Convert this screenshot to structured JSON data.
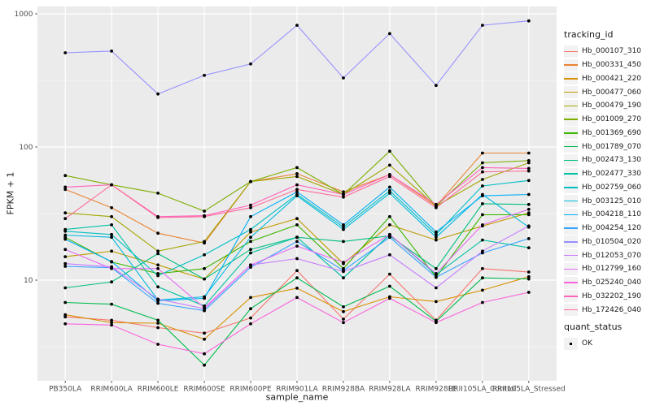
{
  "axes": {
    "x_title": "sample_name",
    "y_title": "FPKM + 1"
  },
  "legend": {
    "title": "tracking_id"
  },
  "legend_quant": {
    "title": "quant_status",
    "items": [
      {
        "label": "OK"
      }
    ]
  },
  "colors": {
    "panel_bg": "#EBEBEB",
    "grid": "#FFFFFF",
    "axis_text": "#4D4D4D",
    "tick_mark": "#333333",
    "legend_key_bg": "#F2F2F2",
    "point": "#000000"
  },
  "chart_data": {
    "type": "line",
    "xlabel": "sample_name",
    "ylabel": "FPKM + 1",
    "y_scale": "log10",
    "y_ticks": [
      1000,
      100,
      10
    ],
    "y_minor_ticks": [
      316.23,
      31.62,
      3.162
    ],
    "ylim": [
      1.75,
      1135
    ],
    "grid": true,
    "legend_position": "right",
    "point_marker": {
      "shape": "dot",
      "color": "#000000",
      "size": 2,
      "meaning": "quant_status OK"
    },
    "x_categories": [
      "PB350LA",
      "RRIM600LA",
      "RRIM600LE",
      "RRIM600SE",
      "RRIM600PE",
      "RRIM901LA",
      "RRIM928BA",
      "RRIM928LA",
      "RRIM928LE",
      "RRII105LA_Control",
      "RRII105LA_Stressed"
    ],
    "series": [
      {
        "name": "Hb_000107_310",
        "color": "#F8766D",
        "values": [
          5.3,
          5.0,
          4.4,
          4.0,
          5.2,
          11.8,
          5.1,
          11.1,
          5.0,
          12.2,
          11.5
        ]
      },
      {
        "name": "Hb_000331_450",
        "color": "#EA8331",
        "values": [
          48,
          35,
          22.5,
          19,
          55,
          63,
          46,
          62,
          36,
          90,
          90
        ]
      },
      {
        "name": "Hb_000421_220",
        "color": "#D89000",
        "values": [
          5.5,
          4.8,
          4.75,
          3.6,
          7.4,
          8.7,
          5.8,
          7.5,
          6.9,
          8.4,
          10.6
        ]
      },
      {
        "name": "Hb_000477_060",
        "color": "#C09B00",
        "values": [
          15,
          16.5,
          13,
          10.2,
          23,
          29,
          13.3,
          26,
          20,
          25.5,
          32
        ]
      },
      {
        "name": "Hb_000479_190",
        "color": "#A3A500",
        "values": [
          32,
          30,
          16.5,
          19.5,
          55,
          60,
          44,
          73,
          36,
          57,
          76
        ]
      },
      {
        "name": "Hb_001009_270",
        "color": "#7CAE00",
        "values": [
          61,
          52,
          45,
          33,
          55,
          70,
          44,
          93,
          36,
          76,
          79
        ]
      },
      {
        "name": "Hb_001369_690",
        "color": "#39B600",
        "values": [
          21,
          13.7,
          11.2,
          12.2,
          19.5,
          26,
          12.2,
          30,
          10.5,
          31,
          31
        ]
      },
      {
        "name": "Hb_001789_070",
        "color": "#00BB4E",
        "values": [
          6.8,
          6.6,
          5.0,
          2.3,
          6.1,
          10.4,
          6.3,
          9.0,
          4.9,
          10.4,
          10.2
        ]
      },
      {
        "name": "Hb_002473_130",
        "color": "#00BF7D",
        "values": [
          8.75,
          9.7,
          15.8,
          10.2,
          17,
          21,
          19.5,
          21.5,
          12.2,
          37.5,
          37
        ]
      },
      {
        "name": "Hb_002477_330",
        "color": "#00C1A3",
        "values": [
          24,
          26,
          8.9,
          6.4,
          16,
          21,
          10.4,
          22,
          11,
          20,
          17.5
        ]
      },
      {
        "name": "Hb_002759_060",
        "color": "#00BFC4",
        "values": [
          23.3,
          22,
          10.8,
          15.5,
          24,
          44,
          25,
          47,
          22,
          51,
          56
        ]
      },
      {
        "name": "Hb_003125_010",
        "color": "#00BAE0",
        "values": [
          21.8,
          21,
          7.1,
          7.5,
          21,
          43,
          24,
          45,
          21,
          44,
          25
        ]
      },
      {
        "name": "Hb_004218_110",
        "color": "#00B0F6",
        "values": [
          20.3,
          13.8,
          7.0,
          7.3,
          30,
          46,
          26,
          50,
          23,
          43,
          44
        ]
      },
      {
        "name": "Hb_004254_120",
        "color": "#35A2FF",
        "values": [
          12.7,
          12.4,
          6.7,
          5.9,
          12.5,
          19.5,
          11.8,
          21,
          10.5,
          16,
          20.5
        ]
      },
      {
        "name": "Hb_010504_020",
        "color": "#9590FF",
        "values": [
          510,
          525,
          250,
          345,
          420,
          820,
          330,
          710,
          290,
          820,
          885
        ]
      },
      {
        "name": "Hb_012053_070",
        "color": "#C77CFF",
        "values": [
          13.3,
          12.6,
          7.2,
          6.1,
          13,
          14.5,
          11.6,
          15.5,
          8.75,
          16.5,
          25.5
        ]
      },
      {
        "name": "Hb_012799_160",
        "color": "#E76BF3",
        "values": [
          17,
          12.2,
          12.2,
          6.2,
          13,
          18,
          13.6,
          22,
          11.2,
          26,
          34
        ]
      },
      {
        "name": "Hb_025240_040",
        "color": "#FA62DB",
        "values": [
          4.7,
          4.6,
          3.3,
          2.8,
          4.7,
          7.4,
          4.8,
          7.3,
          4.8,
          6.8,
          8.1
        ]
      },
      {
        "name": "Hb_032202_190",
        "color": "#FF62BC",
        "values": [
          50,
          52,
          30,
          30.5,
          36.6,
          52,
          44,
          62,
          37,
          70,
          69
        ]
      },
      {
        "name": "Hb_172426_040",
        "color": "#FF6A98",
        "values": [
          29,
          52,
          29.5,
          30,
          35,
          48,
          42,
          60,
          35,
          65,
          66
        ]
      }
    ]
  }
}
